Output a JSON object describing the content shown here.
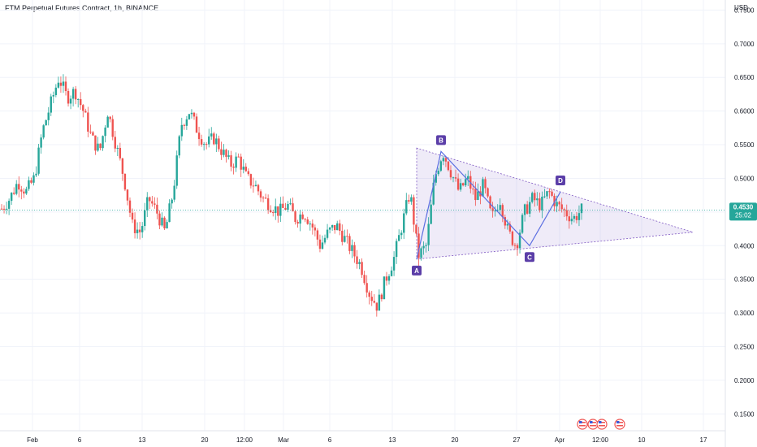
{
  "title": "FTM Perpetual Futures Contract, 1h, BINANCE",
  "currency": "USD",
  "current_price": "0.4530",
  "countdown": "25:02",
  "colors": {
    "up": "#26a69a",
    "down": "#ef5350",
    "pattern": "#7e57c2",
    "pattern_fill": "rgba(126,87,194,0.12)",
    "label_bg": "#5b3ea8"
  },
  "chart_data": {
    "type": "candlestick",
    "title": "FTM Perpetual Futures Contract, 1h, BINANCE",
    "ylabel": "USD",
    "ylim": [
      0.125,
      0.765
    ],
    "y_ticks": [
      "0.7500",
      "0.7000",
      "0.6500",
      "0.6000",
      "0.5500",
      "0.5000",
      "0.4500",
      "0.4000",
      "0.3500",
      "0.3000",
      "0.2500",
      "0.2000",
      "0.1500"
    ],
    "x_ticks": [
      "Feb",
      "6",
      "13",
      "20",
      "12:00",
      "Mar",
      "6",
      "13",
      "20",
      "27",
      "Apr",
      "12:00",
      "10",
      "17"
    ],
    "price_path": [
      0.455,
      0.47,
      0.495,
      0.48,
      0.5,
      0.57,
      0.61,
      0.65,
      0.62,
      0.63,
      0.6,
      0.56,
      0.54,
      0.6,
      0.55,
      0.5,
      0.43,
      0.42,
      0.47,
      0.45,
      0.42,
      0.48,
      0.58,
      0.6,
      0.57,
      0.55,
      0.56,
      0.54,
      0.52,
      0.53,
      0.5,
      0.49,
      0.47,
      0.46,
      0.45,
      0.46,
      0.44,
      0.45,
      0.43,
      0.4,
      0.42,
      0.43,
      0.41,
      0.39,
      0.37,
      0.33,
      0.31,
      0.35,
      0.38,
      0.43,
      0.48,
      0.385,
      0.4,
      0.5,
      0.54,
      0.51,
      0.48,
      0.5,
      0.47,
      0.49,
      0.44,
      0.47,
      0.42,
      0.4,
      0.45,
      0.47,
      0.46,
      0.48,
      0.46,
      0.45,
      0.44,
      0.453
    ],
    "pattern": {
      "points": [
        {
          "label": "A",
          "price": 0.38
        },
        {
          "label": "B",
          "price": 0.54
        },
        {
          "label": "C",
          "price": 0.4
        },
        {
          "label": "D",
          "price": 0.48
        }
      ],
      "triangle_apex_price": 0.42
    }
  }
}
